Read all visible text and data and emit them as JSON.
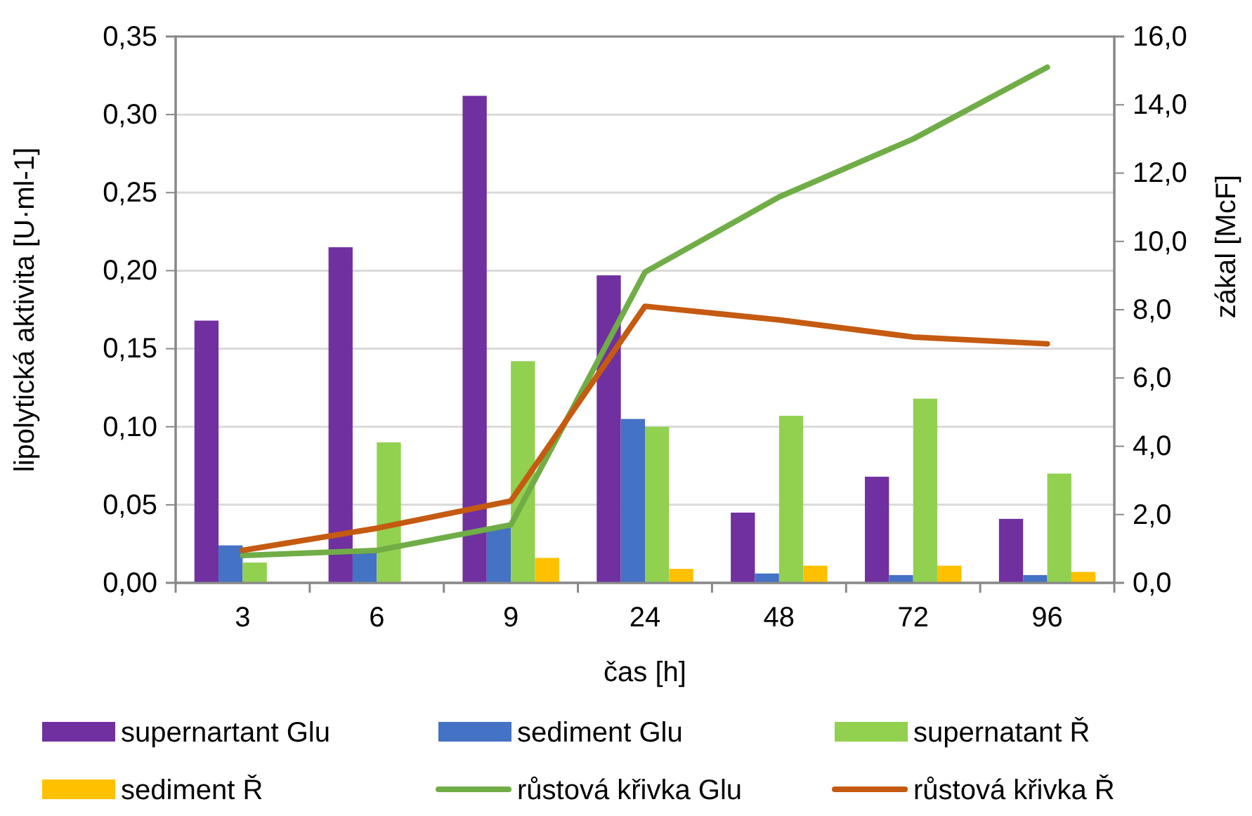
{
  "chart_data": {
    "type": "bar",
    "xlabel": "čas [h]",
    "ylabel": "lipolytická aktivita [U·ml-1]",
    "y2label": "zákal [McF]",
    "categories": [
      "3",
      "6",
      "9",
      "24",
      "48",
      "72",
      "96"
    ],
    "series": [
      {
        "name": "supernartant Glu",
        "color": "#7030a0",
        "values": [
          0.168,
          0.215,
          0.312,
          0.197,
          0.045,
          0.068,
          0.041
        ]
      },
      {
        "name": "sediment Glu",
        "color": "#4472c4",
        "values": [
          0.024,
          0.021,
          0.036,
          0.105,
          0.006,
          0.005,
          0.005
        ]
      },
      {
        "name": "supernatant Ř",
        "color": "#92d050",
        "values": [
          0.013,
          0.09,
          0.142,
          0.1,
          0.107,
          0.118,
          0.07
        ]
      },
      {
        "name": "sediment Ř",
        "color": "#ffc000",
        "values": [
          0,
          0,
          0.016,
          0.009,
          0.011,
          0.011,
          0.007
        ]
      },
      {
        "name": "růstová křivka Glu",
        "type": "line",
        "axis": "y2",
        "color": "#70ad47",
        "values": [
          0.8,
          0.95,
          1.7,
          9.1,
          11.3,
          13.0,
          15.1
        ]
      },
      {
        "name": "růstová křivka Ř",
        "type": "line",
        "axis": "y2",
        "color": "#c55a11",
        "values": [
          0.95,
          1.6,
          2.4,
          8.1,
          7.7,
          7.2,
          7.0
        ]
      }
    ],
    "ylim": [
      0,
      0.35
    ],
    "yticks": [
      {
        "value": 0,
        "label": "0,00"
      },
      {
        "value": 0.05,
        "label": "0,05"
      },
      {
        "value": 0.1,
        "label": "0,10"
      },
      {
        "value": 0.15,
        "label": "0,15"
      },
      {
        "value": 0.2,
        "label": "0,20"
      },
      {
        "value": 0.25,
        "label": "0,25"
      },
      {
        "value": 0.3,
        "label": "0,30"
      },
      {
        "value": 0.35,
        "label": "0,35"
      }
    ],
    "y2lim": [
      0,
      16
    ],
    "y2ticks": [
      {
        "value": 0,
        "label": "0,0"
      },
      {
        "value": 2,
        "label": "2,0"
      },
      {
        "value": 4,
        "label": "4,0"
      },
      {
        "value": 6,
        "label": "6,0"
      },
      {
        "value": 8,
        "label": "8,0"
      },
      {
        "value": 10,
        "label": "10,0"
      },
      {
        "value": 12,
        "label": "12,0"
      },
      {
        "value": 14,
        "label": "14,0"
      },
      {
        "value": 16,
        "label": "16,0"
      }
    ],
    "grid": "y",
    "legend": "bottom",
    "line_style": "solid",
    "marker": "none"
  }
}
